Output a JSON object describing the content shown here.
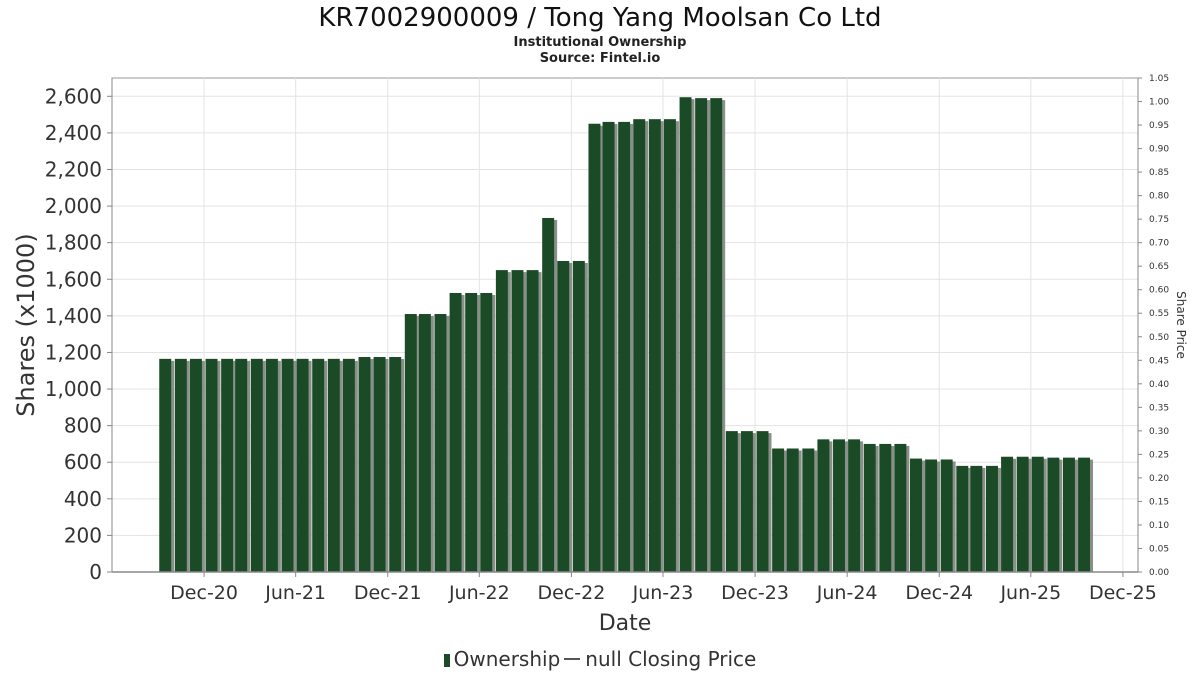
{
  "title": "KR7002900009 / Tong Yang Moolsan Co Ltd",
  "subtitle": "Institutional Ownership",
  "source": "Source: Fintel.io",
  "legend": {
    "ownership": "Ownership",
    "closing_price": "null Closing Price"
  },
  "colors": {
    "bar": "#1b4a26",
    "bar_shadow": "#8a8f8a",
    "grid": "#e3e3e3",
    "axis": "#888888"
  },
  "chart_data": {
    "type": "bar",
    "xlabel": "Date",
    "ylabel": "Shares (x1000)",
    "y2label": "Share Price",
    "ylim": [
      0,
      2700
    ],
    "y2lim": [
      0,
      1.05
    ],
    "yticks": [
      0,
      200,
      400,
      600,
      800,
      1000,
      1200,
      1400,
      1600,
      1800,
      2000,
      2200,
      2400,
      2600
    ],
    "ytick_labels": [
      "0",
      "200",
      "400",
      "600",
      "800",
      "1,000",
      "1,200",
      "1,400",
      "1,600",
      "1,800",
      "2,000",
      "2,200",
      "2,400",
      "2,600"
    ],
    "y2ticks": [
      "0.00",
      "0.05",
      "0.10",
      "0.15",
      "0.20",
      "0.25",
      "0.30",
      "0.35",
      "0.40",
      "0.45",
      "0.50",
      "0.55",
      "0.60",
      "0.65",
      "0.70",
      "0.75",
      "0.80",
      "0.85",
      "0.90",
      "0.95",
      "1.00",
      "1.05"
    ],
    "xlim": [
      "2020-06-01",
      "2025-12-31"
    ],
    "xticks": [
      {
        "date": "2020-12-01",
        "label": "Dec-20"
      },
      {
        "date": "2021-06-01",
        "label": "Jun-21"
      },
      {
        "date": "2021-12-01",
        "label": "Dec-21"
      },
      {
        "date": "2022-06-01",
        "label": "Jun-22"
      },
      {
        "date": "2022-12-01",
        "label": "Dec-22"
      },
      {
        "date": "2023-06-01",
        "label": "Jun-23"
      },
      {
        "date": "2023-12-01",
        "label": "Dec-23"
      },
      {
        "date": "2024-06-01",
        "label": "Jun-24"
      },
      {
        "date": "2024-12-01",
        "label": "Dec-24"
      },
      {
        "date": "2025-06-01",
        "label": "Jun-25"
      },
      {
        "date": "2025-12-01",
        "label": "Dec-25"
      }
    ],
    "grid": true,
    "legend_position": "bottom",
    "series": [
      {
        "name": "Ownership",
        "points": [
          {
            "x": "2020-09-30",
            "y": 1165
          },
          {
            "x": "2020-10-31",
            "y": 1165
          },
          {
            "x": "2020-11-30",
            "y": 1165
          },
          {
            "x": "2020-12-31",
            "y": 1165
          },
          {
            "x": "2021-01-31",
            "y": 1165
          },
          {
            "x": "2021-02-28",
            "y": 1165
          },
          {
            "x": "2021-03-31",
            "y": 1165
          },
          {
            "x": "2021-04-30",
            "y": 1165
          },
          {
            "x": "2021-05-31",
            "y": 1165
          },
          {
            "x": "2021-06-30",
            "y": 1165
          },
          {
            "x": "2021-07-31",
            "y": 1165
          },
          {
            "x": "2021-08-31",
            "y": 1165
          },
          {
            "x": "2021-09-30",
            "y": 1165
          },
          {
            "x": "2021-10-31",
            "y": 1175
          },
          {
            "x": "2021-11-30",
            "y": 1175
          },
          {
            "x": "2021-12-31",
            "y": 1175
          },
          {
            "x": "2022-01-31",
            "y": 1410
          },
          {
            "x": "2022-02-28",
            "y": 1410
          },
          {
            "x": "2022-03-31",
            "y": 1410
          },
          {
            "x": "2022-04-30",
            "y": 1525
          },
          {
            "x": "2022-05-31",
            "y": 1525
          },
          {
            "x": "2022-06-30",
            "y": 1525
          },
          {
            "x": "2022-07-31",
            "y": 1650
          },
          {
            "x": "2022-08-31",
            "y": 1650
          },
          {
            "x": "2022-09-30",
            "y": 1650
          },
          {
            "x": "2022-10-31",
            "y": 1935
          },
          {
            "x": "2022-11-30",
            "y": 1700
          },
          {
            "x": "2022-12-31",
            "y": 1700
          },
          {
            "x": "2023-01-31",
            "y": 2450
          },
          {
            "x": "2023-02-28",
            "y": 2460
          },
          {
            "x": "2023-03-31",
            "y": 2460
          },
          {
            "x": "2023-04-30",
            "y": 2475
          },
          {
            "x": "2023-05-31",
            "y": 2475
          },
          {
            "x": "2023-06-30",
            "y": 2475
          },
          {
            "x": "2023-07-31",
            "y": 2595
          },
          {
            "x": "2023-08-31",
            "y": 2590
          },
          {
            "x": "2023-09-30",
            "y": 2590
          },
          {
            "x": "2023-10-31",
            "y": 770
          },
          {
            "x": "2023-11-30",
            "y": 770
          },
          {
            "x": "2023-12-31",
            "y": 770
          },
          {
            "x": "2024-01-31",
            "y": 675
          },
          {
            "x": "2024-02-29",
            "y": 675
          },
          {
            "x": "2024-03-31",
            "y": 675
          },
          {
            "x": "2024-04-30",
            "y": 725
          },
          {
            "x": "2024-05-31",
            "y": 725
          },
          {
            "x": "2024-06-30",
            "y": 725
          },
          {
            "x": "2024-07-31",
            "y": 700
          },
          {
            "x": "2024-08-31",
            "y": 700
          },
          {
            "x": "2024-09-30",
            "y": 700
          },
          {
            "x": "2024-10-31",
            "y": 620
          },
          {
            "x": "2024-11-30",
            "y": 615
          },
          {
            "x": "2024-12-31",
            "y": 615
          },
          {
            "x": "2025-01-31",
            "y": 580
          },
          {
            "x": "2025-02-28",
            "y": 580
          },
          {
            "x": "2025-03-31",
            "y": 580
          },
          {
            "x": "2025-04-30",
            "y": 630
          },
          {
            "x": "2025-05-31",
            "y": 630
          },
          {
            "x": "2025-06-30",
            "y": 630
          },
          {
            "x": "2025-07-31",
            "y": 625
          },
          {
            "x": "2025-08-31",
            "y": 625
          },
          {
            "x": "2025-09-30",
            "y": 625
          }
        ]
      }
    ]
  }
}
